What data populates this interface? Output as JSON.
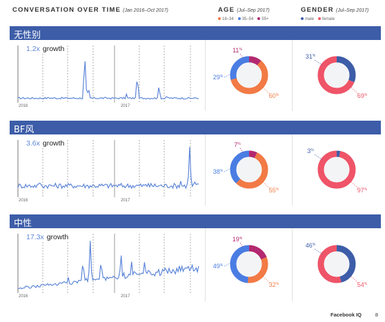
{
  "header": {
    "conversation_title": "CONVERSATION OVER TIME",
    "conversation_range": "(Jan 2016–Oct 2017)",
    "age_title": "AGE",
    "age_range": "(Jul–Sep 2017)",
    "gender_title": "GENDER",
    "gender_range": "(Jul–Sep 2017)"
  },
  "legend": {
    "age": [
      {
        "label": "18–34",
        "color": "#f27a45"
      },
      {
        "label": "35–54",
        "color": "#4a7de3"
      },
      {
        "label": "55+",
        "color": "#b3296f"
      }
    ],
    "gender": [
      {
        "label": "male",
        "color": "#3d5da8"
      },
      {
        "label": "female",
        "color": "#ef5468"
      }
    ]
  },
  "colors": {
    "bar": "#3d5da8",
    "line": "#5d86d8",
    "donut_center": "#f3f4f6"
  },
  "rows": [
    {
      "title": "无性别",
      "growth_multiplier": "1.2x",
      "growth_word": "growth",
      "year_start": "2016",
      "year_end": "2017",
      "age": {
        "young": 60,
        "middle": 29,
        "old": 11,
        "young_label": "60",
        "middle_label": "29",
        "old_label": "11"
      },
      "gender": {
        "male": 31,
        "female": 69,
        "male_label": "31",
        "female_label": "69"
      }
    },
    {
      "title": "BF风",
      "growth_multiplier": "3.6x",
      "growth_word": "growth",
      "year_start": "2016",
      "year_end": "2017",
      "age": {
        "young": 55,
        "middle": 38,
        "old": 7,
        "young_label": "55",
        "middle_label": "38",
        "old_label": "7"
      },
      "gender": {
        "male": 3,
        "female": 97,
        "male_label": "3",
        "female_label": "97"
      }
    },
    {
      "title": "中性",
      "growth_multiplier": "17.3x",
      "growth_word": "growth",
      "year_start": "2016",
      "year_end": "2017",
      "age": {
        "young": 32,
        "middle": 49,
        "old": 19,
        "young_label": "32",
        "middle_label": "49",
        "old_label": "19"
      },
      "gender": {
        "male": 46,
        "female": 54,
        "male_label": "46",
        "female_label": "54"
      }
    }
  ],
  "footer": {
    "brand": "Facebook IQ",
    "page": "8"
  },
  "percent_sign": "%"
}
